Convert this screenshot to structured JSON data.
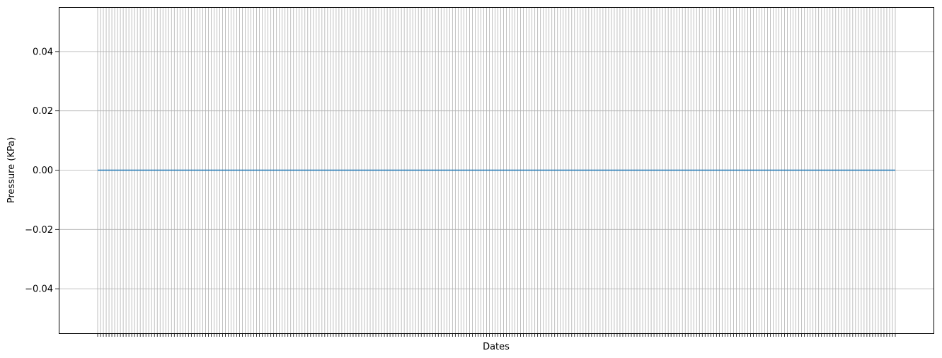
{
  "chart_data": {
    "type": "line",
    "title": "",
    "xlabel": "Dates",
    "ylabel": "Pressure (KPa)",
    "x_tick_count": 282,
    "x_tick_labels_shown": false,
    "ylim": [
      -0.055,
      0.055
    ],
    "y_ticks": [
      -0.04,
      -0.02,
      0.0,
      0.02,
      0.04
    ],
    "y_tick_labels": [
      "−0.04",
      "−0.02",
      "0.00",
      "0.02",
      "0.04"
    ],
    "grid": true,
    "legend": "none",
    "series": [
      {
        "constant_value": 0.0,
        "color": "#1f77b4"
      }
    ],
    "colors": {
      "grid": "#b0b0b0",
      "axes": "#000000"
    }
  }
}
